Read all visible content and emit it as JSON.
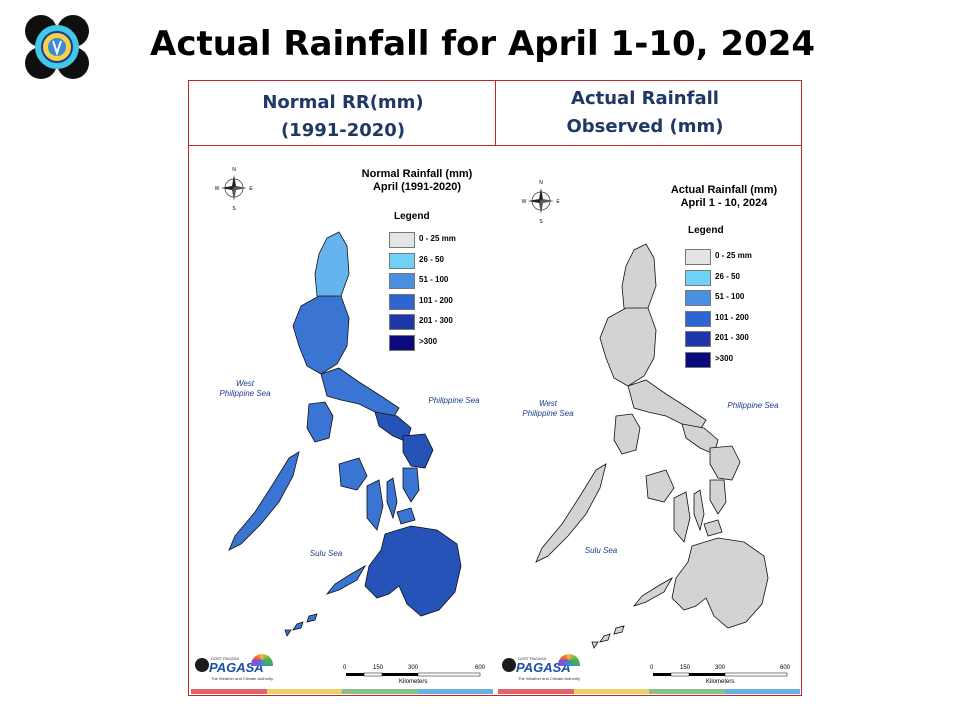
{
  "title": "Actual Rainfall for April 1-10, 2024",
  "columns": {
    "left": {
      "line1": "Normal RR(mm)",
      "line2": "(1991-2020)"
    },
    "right": {
      "line1": "Actual Rainfall",
      "line2": "Observed (mm)"
    }
  },
  "maps": {
    "left": {
      "title1": "Normal Rainfall (mm)",
      "title2": "April (1991-2020)",
      "fill": "#3a75d4",
      "fill_light": "#66b4ee",
      "fill_dark": "#2653b8"
    },
    "right": {
      "title1": "Actual Rainfall (mm)",
      "title2": "April 1 - 10, 2024",
      "fill": "#d3d3d3",
      "fill_light": "#d3d3d3",
      "fill_dark": "#d3d3d3"
    }
  },
  "legend": {
    "title": "Legend",
    "items": [
      {
        "label": "0 - 25 mm",
        "color": "#e4e4e4"
      },
      {
        "label": "26 - 50",
        "color": "#6fd3f7"
      },
      {
        "label": "51 - 100",
        "color": "#4a90e2"
      },
      {
        "label": "101 - 200",
        "color": "#2d66d1"
      },
      {
        "label": "201 - 300",
        "color": "#1f38a8"
      },
      {
        "label": ">300",
        "color": "#0a0a7a"
      }
    ]
  },
  "compass": {
    "n": "N",
    "s": "S",
    "e": "E",
    "w": "W"
  },
  "seas": {
    "west": [
      "West",
      "Philippine Sea"
    ],
    "east": "Philippine Sea",
    "sulu": "Sulu Sea"
  },
  "scale": {
    "ticks": [
      "0",
      "150",
      "300",
      "600"
    ],
    "unit": "Kilometers"
  },
  "brand": {
    "prefix": "DOST",
    "sub_prefix": "PAGASA",
    "name": "PAGASA",
    "tagline": "The Weather and Climate Authority"
  },
  "strip_colors": [
    "#e0656b",
    "#e8d36a",
    "#8cc08a",
    "#6ab0e0"
  ]
}
